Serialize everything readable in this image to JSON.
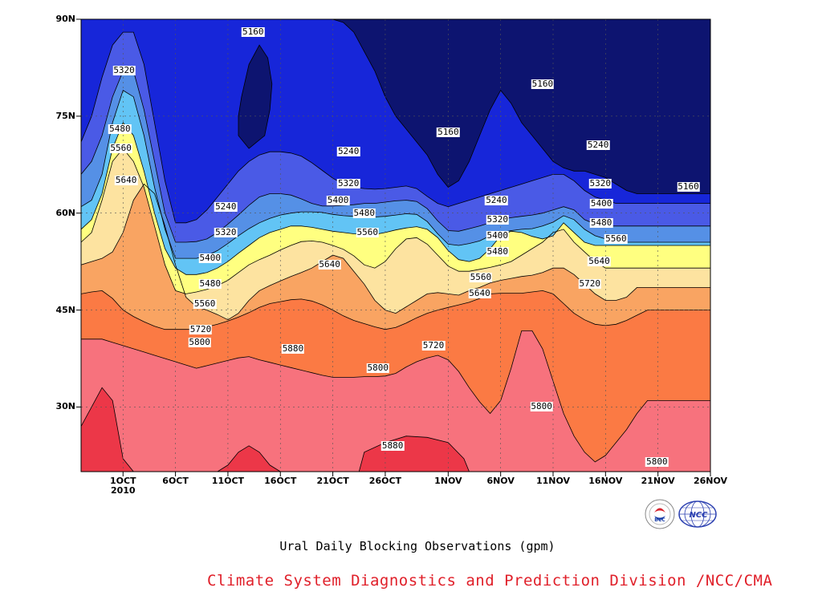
{
  "chart_data": {
    "type": "contour",
    "title": "Ural Daily Blocking Observations (gpm)",
    "credit": "Climate System Diagnostics and Prediction Division /NCC/CMA",
    "x_axis": {
      "range": [
        "2010-09-27",
        "2010-11-26"
      ],
      "ticks": [
        {
          "date": "2010-10-01",
          "label": "1OCT",
          "sub": "2010"
        },
        {
          "date": "2010-10-06",
          "label": "6OCT"
        },
        {
          "date": "2010-10-11",
          "label": "11OCT"
        },
        {
          "date": "2010-10-16",
          "label": "16OCT"
        },
        {
          "date": "2010-10-21",
          "label": "21OCT"
        },
        {
          "date": "2010-10-26",
          "label": "26OCT"
        },
        {
          "date": "2010-11-01",
          "label": "1NOV"
        },
        {
          "date": "2010-11-06",
          "label": "6NOV"
        },
        {
          "date": "2010-11-11",
          "label": "11NOV"
        },
        {
          "date": "2010-11-16",
          "label": "16NOV"
        },
        {
          "date": "2010-11-21",
          "label": "21NOV"
        },
        {
          "date": "2010-11-26",
          "label": "26NOV"
        }
      ]
    },
    "y_axis": {
      "range": [
        20,
        90
      ],
      "ticks": [
        {
          "value": 30,
          "label": "30N"
        },
        {
          "value": 45,
          "label": "45N"
        },
        {
          "value": 60,
          "label": "60N"
        },
        {
          "value": 75,
          "label": "75N"
        },
        {
          "value": 90,
          "label": "90N"
        }
      ]
    },
    "grid": true,
    "contour_levels": [
      5160,
      5240,
      5320,
      5400,
      5480,
      5560,
      5640,
      5720,
      5800,
      5880
    ],
    "fill_colors": [
      "#0d1470",
      "#1726d9",
      "#4a5ae6",
      "#5590e6",
      "#62c4f5",
      "#ffff80",
      "#fde3a0",
      "#f9a462",
      "#fb7a44",
      "#f7727d",
      "#ec3748"
    ],
    "boundaries": [
      {
        "level": 5880,
        "lat": [
          27,
          30,
          33,
          31,
          22,
          20,
          20,
          20,
          20,
          20,
          20,
          20,
          20,
          20,
          21,
          23,
          24,
          23,
          21,
          20,
          20,
          20,
          20,
          20,
          20,
          20,
          20,
          20,
          20,
          20,
          20,
          20,
          20,
          20,
          20,
          20,
          20,
          20,
          20,
          20,
          20,
          20,
          20,
          20,
          20,
          20,
          20,
          20,
          20,
          20,
          20,
          20,
          20,
          20,
          20,
          20,
          20,
          20,
          20,
          20,
          20
        ]
      },
      {
        "level": 5800,
        "lat": [
          40.5,
          40.5,
          40.5,
          40,
          39.5,
          39,
          38.5,
          38,
          37.5,
          37,
          36.5,
          36,
          36.4,
          36.8,
          37.2,
          37.6,
          37.8,
          37.3,
          36.9,
          36.5,
          36.1,
          35.7,
          35.3,
          34.9,
          34.6,
          34.6,
          34.6,
          34.7,
          34.7,
          34.8,
          35.2,
          36.2,
          37,
          37.6,
          38,
          37.3,
          35.5,
          33,
          30.8,
          29,
          31,
          36,
          41.8,
          41.8,
          39,
          34,
          29,
          25.5,
          23,
          21.5,
          22.5,
          24.5,
          26.5,
          29,
          31,
          31,
          31,
          31,
          31,
          31,
          31
        ]
      },
      {
        "level": 5720,
        "lat": [
          47.5,
          47.8,
          48,
          46.8,
          45,
          44,
          43.2,
          42.5,
          42,
          42,
          42,
          42,
          42.4,
          42.8,
          43.3,
          43.9,
          44.6,
          45.4,
          46,
          46.3,
          46.6,
          46.7,
          46.4,
          45.8,
          45,
          44.1,
          43.4,
          42.9,
          42.4,
          42,
          42.3,
          43,
          43.8,
          44.5,
          45,
          45.4,
          45.8,
          46.2,
          46.8,
          47.5,
          47.6,
          47.6,
          47.6,
          47.8,
          48,
          47.5,
          46,
          44.5,
          43.5,
          42.8,
          42.6,
          42.8,
          43.4,
          44.2,
          45,
          45,
          45,
          45,
          45,
          45,
          45
        ]
      },
      {
        "level": 5640,
        "lat": [
          52,
          52.5,
          53,
          54,
          57,
          62,
          64.5,
          63,
          58,
          52,
          47,
          45.5,
          45,
          44.3,
          43.5,
          44.5,
          46.5,
          48,
          48.8,
          49.5,
          50.2,
          50.8,
          51.5,
          52.5,
          53.5,
          53,
          51,
          49,
          46.5,
          45,
          44.5,
          45.5,
          46.5,
          47.5,
          47.7,
          47.5,
          47.3,
          48,
          48.5,
          49.2,
          49.6,
          49.9,
          50.2,
          50.4,
          50.8,
          51.5,
          51.5,
          50.5,
          49,
          47.5,
          46.5,
          46.5,
          47,
          48.5,
          48.5,
          48.5,
          48.5,
          48.5,
          48.5,
          48.5,
          48.5
        ]
      },
      {
        "level": 5560,
        "lat": [
          55.5,
          57,
          62,
          68,
          70,
          68,
          64,
          58,
          52,
          48,
          47.5,
          47.8,
          48.2,
          48.8,
          49.6,
          50.8,
          52,
          52.8,
          53.5,
          54.3,
          55,
          55.6,
          55.7,
          55.5,
          55,
          54.4,
          53.4,
          52,
          51.5,
          52.5,
          54.5,
          56,
          56.2,
          55.2,
          53.5,
          51.8,
          51,
          51,
          51.3,
          51.6,
          52,
          52.5,
          53.5,
          54.5,
          55.5,
          57,
          57.5,
          55.5,
          54,
          52.5,
          51.5,
          51.5,
          51.5,
          51.5,
          51.5,
          51.5,
          51.5,
          51.5,
          51.5,
          51.5,
          51.5
        ]
      },
      {
        "level": 5480,
        "lat": [
          57.5,
          59,
          63,
          70,
          74,
          72,
          66.5,
          60,
          54.5,
          51.5,
          50.5,
          50.5,
          50.8,
          51.5,
          52.5,
          53.8,
          55,
          56.2,
          57,
          57.5,
          58,
          58,
          57.8,
          57.5,
          57.2,
          57,
          56.8,
          56.7,
          56.7,
          57,
          57.4,
          57.7,
          57.9,
          57.5,
          56.2,
          54.2,
          52.8,
          52.5,
          53,
          54.5,
          56.5,
          57.2,
          57,
          56.4,
          56,
          56.5,
          58.5,
          57,
          55.5,
          55,
          55,
          55,
          55,
          55,
          55,
          55,
          55,
          55,
          55,
          55,
          55
        ]
      },
      {
        "level": 5400,
        "lat": [
          61,
          62,
          66,
          74,
          79,
          78,
          72,
          64,
          57.5,
          53,
          53,
          53,
          53.4,
          54.2,
          55.3,
          56.5,
          57.6,
          58.5,
          59.2,
          59.7,
          60,
          60.2,
          60.2,
          60.1,
          59.8,
          59.6,
          59.5,
          59.4,
          59.4,
          59.5,
          59.7,
          59.9,
          59.8,
          58.7,
          56.8,
          55.2,
          55,
          55.3,
          55.7,
          56.5,
          57,
          57.3,
          57.5,
          57.6,
          58,
          58.6,
          59.6,
          59,
          57.5,
          56.5,
          56,
          55.5,
          55.5,
          55.5,
          55.5,
          55.5,
          55.5,
          55.5,
          55.5,
          55.5,
          55.5
        ]
      },
      {
        "level": 5320,
        "lat": [
          66,
          68,
          72,
          78,
          82,
          82,
          76,
          68,
          60,
          55.5,
          55.5,
          55.6,
          56,
          57,
          58.3,
          59.7,
          61.2,
          62.5,
          63,
          63,
          62.8,
          62.2,
          61.5,
          61.1,
          61.1,
          61.2,
          61.3,
          61.5,
          61.5,
          61.7,
          61.9,
          62,
          61.8,
          60.7,
          58.8,
          57.3,
          57.2,
          57.6,
          58,
          58.5,
          59,
          59.3,
          59.5,
          59.7,
          60,
          60.5,
          61,
          60.5,
          59,
          58.3,
          58,
          58,
          58,
          58,
          58,
          58,
          58,
          58,
          58,
          58,
          58
        ]
      },
      {
        "level": 5240,
        "lat": [
          71,
          75,
          81,
          86,
          88,
          88,
          83,
          74,
          65,
          58.5,
          58.5,
          59,
          60.5,
          62.5,
          64.5,
          66.5,
          68,
          69,
          69.5,
          69.5,
          69.3,
          68.8,
          67.8,
          66.6,
          65.4,
          64.5,
          64,
          63.8,
          63.7,
          63.8,
          64,
          64.2,
          63.8,
          62.6,
          61.5,
          61,
          61.5,
          62,
          62.5,
          63,
          63.5,
          64,
          64.5,
          65,
          65.5,
          66,
          66,
          65,
          63.5,
          62.5,
          62,
          61.5,
          61.5,
          61.5,
          61.5,
          61.5,
          61.5,
          61.5,
          61.5,
          61.5,
          61.5
        ]
      },
      {
        "level": 5160,
        "lat": [
          90,
          90,
          90,
          90,
          90,
          90,
          90,
          90,
          90,
          90,
          90,
          90,
          90,
          90,
          90,
          90,
          90,
          90,
          90,
          90,
          90,
          90,
          90,
          90,
          90,
          89.5,
          88,
          85,
          82,
          78,
          75,
          73,
          71,
          69,
          66,
          64,
          65,
          68,
          72,
          76,
          79,
          77,
          74,
          72,
          70,
          68,
          67,
          66.5,
          66.5,
          66,
          65.5,
          64.5,
          63.5,
          63,
          63,
          63,
          63,
          63,
          63,
          63,
          63
        ]
      }
    ],
    "extra_regions": [
      {
        "name": "5160-trough-16OCT",
        "level": 5160,
        "points": [
          [
            15,
            72
          ],
          [
            16,
            70
          ],
          [
            17.5,
            72
          ],
          [
            18,
            76
          ],
          [
            18.2,
            80
          ],
          [
            17.8,
            84
          ],
          [
            17,
            86
          ],
          [
            16,
            83
          ],
          [
            15.3,
            78
          ],
          [
            15,
            75
          ]
        ]
      },
      {
        "name": "5880-high-26OCT",
        "level": 5880,
        "points": [
          [
            26.5,
            20
          ],
          [
            27,
            23
          ],
          [
            29,
            24.5
          ],
          [
            31,
            25.5
          ],
          [
            33,
            25.3
          ],
          [
            35,
            24.5
          ],
          [
            36.5,
            22
          ],
          [
            37,
            20
          ]
        ]
      }
    ],
    "contour_labels": [
      {
        "value": "5160",
        "day": 16.4,
        "lat": 88
      },
      {
        "value": "5320",
        "day": 4.1,
        "lat": 82
      },
      {
        "value": "5480",
        "day": 3.7,
        "lat": 73
      },
      {
        "value": "5560",
        "day": 3.8,
        "lat": 70
      },
      {
        "value": "5640",
        "day": 4.3,
        "lat": 65
      },
      {
        "value": "5240",
        "day": 13.8,
        "lat": 61
      },
      {
        "value": "5320",
        "day": 13.8,
        "lat": 57
      },
      {
        "value": "5400",
        "day": 12.3,
        "lat": 53
      },
      {
        "value": "5480",
        "day": 12.3,
        "lat": 49
      },
      {
        "value": "5560",
        "day": 11.8,
        "lat": 46
      },
      {
        "value": "5720",
        "day": 11.4,
        "lat": 42
      },
      {
        "value": "5800",
        "day": 11.3,
        "lat": 40
      },
      {
        "value": "5880",
        "day": 20.2,
        "lat": 39
      },
      {
        "value": "5240",
        "day": 25.5,
        "lat": 69.5
      },
      {
        "value": "5320",
        "day": 25.5,
        "lat": 64.5
      },
      {
        "value": "5400",
        "day": 24.5,
        "lat": 62
      },
      {
        "value": "5480",
        "day": 27.0,
        "lat": 60
      },
      {
        "value": "5560",
        "day": 27.3,
        "lat": 57
      },
      {
        "value": "5640",
        "day": 23.7,
        "lat": 52
      },
      {
        "value": "5800",
        "day": 28.3,
        "lat": 36
      },
      {
        "value": "5720",
        "day": 33.6,
        "lat": 39.5
      },
      {
        "value": "5160",
        "day": 35.0,
        "lat": 72.5
      },
      {
        "value": "5880",
        "day": 29.7,
        "lat": 24
      },
      {
        "value": "5240",
        "day": 39.6,
        "lat": 62
      },
      {
        "value": "5320",
        "day": 39.7,
        "lat": 59
      },
      {
        "value": "5400",
        "day": 39.7,
        "lat": 56.5
      },
      {
        "value": "5480",
        "day": 39.7,
        "lat": 54
      },
      {
        "value": "5560",
        "day": 38.1,
        "lat": 50
      },
      {
        "value": "5640",
        "day": 38.0,
        "lat": 47.5
      },
      {
        "value": "5160",
        "day": 44.0,
        "lat": 80
      },
      {
        "value": "5800",
        "day": 43.9,
        "lat": 30
      },
      {
        "value": "5240",
        "day": 49.3,
        "lat": 70.5
      },
      {
        "value": "5320",
        "day": 49.5,
        "lat": 64.5
      },
      {
        "value": "5400",
        "day": 49.6,
        "lat": 61.5
      },
      {
        "value": "5480",
        "day": 49.6,
        "lat": 58.5
      },
      {
        "value": "5560",
        "day": 51.0,
        "lat": 56
      },
      {
        "value": "5640",
        "day": 49.4,
        "lat": 52.5
      },
      {
        "value": "5720",
        "day": 48.5,
        "lat": 49
      },
      {
        "value": "5160",
        "day": 57.9,
        "lat": 64
      },
      {
        "value": "5800",
        "day": 54.9,
        "lat": 21.5
      }
    ]
  }
}
